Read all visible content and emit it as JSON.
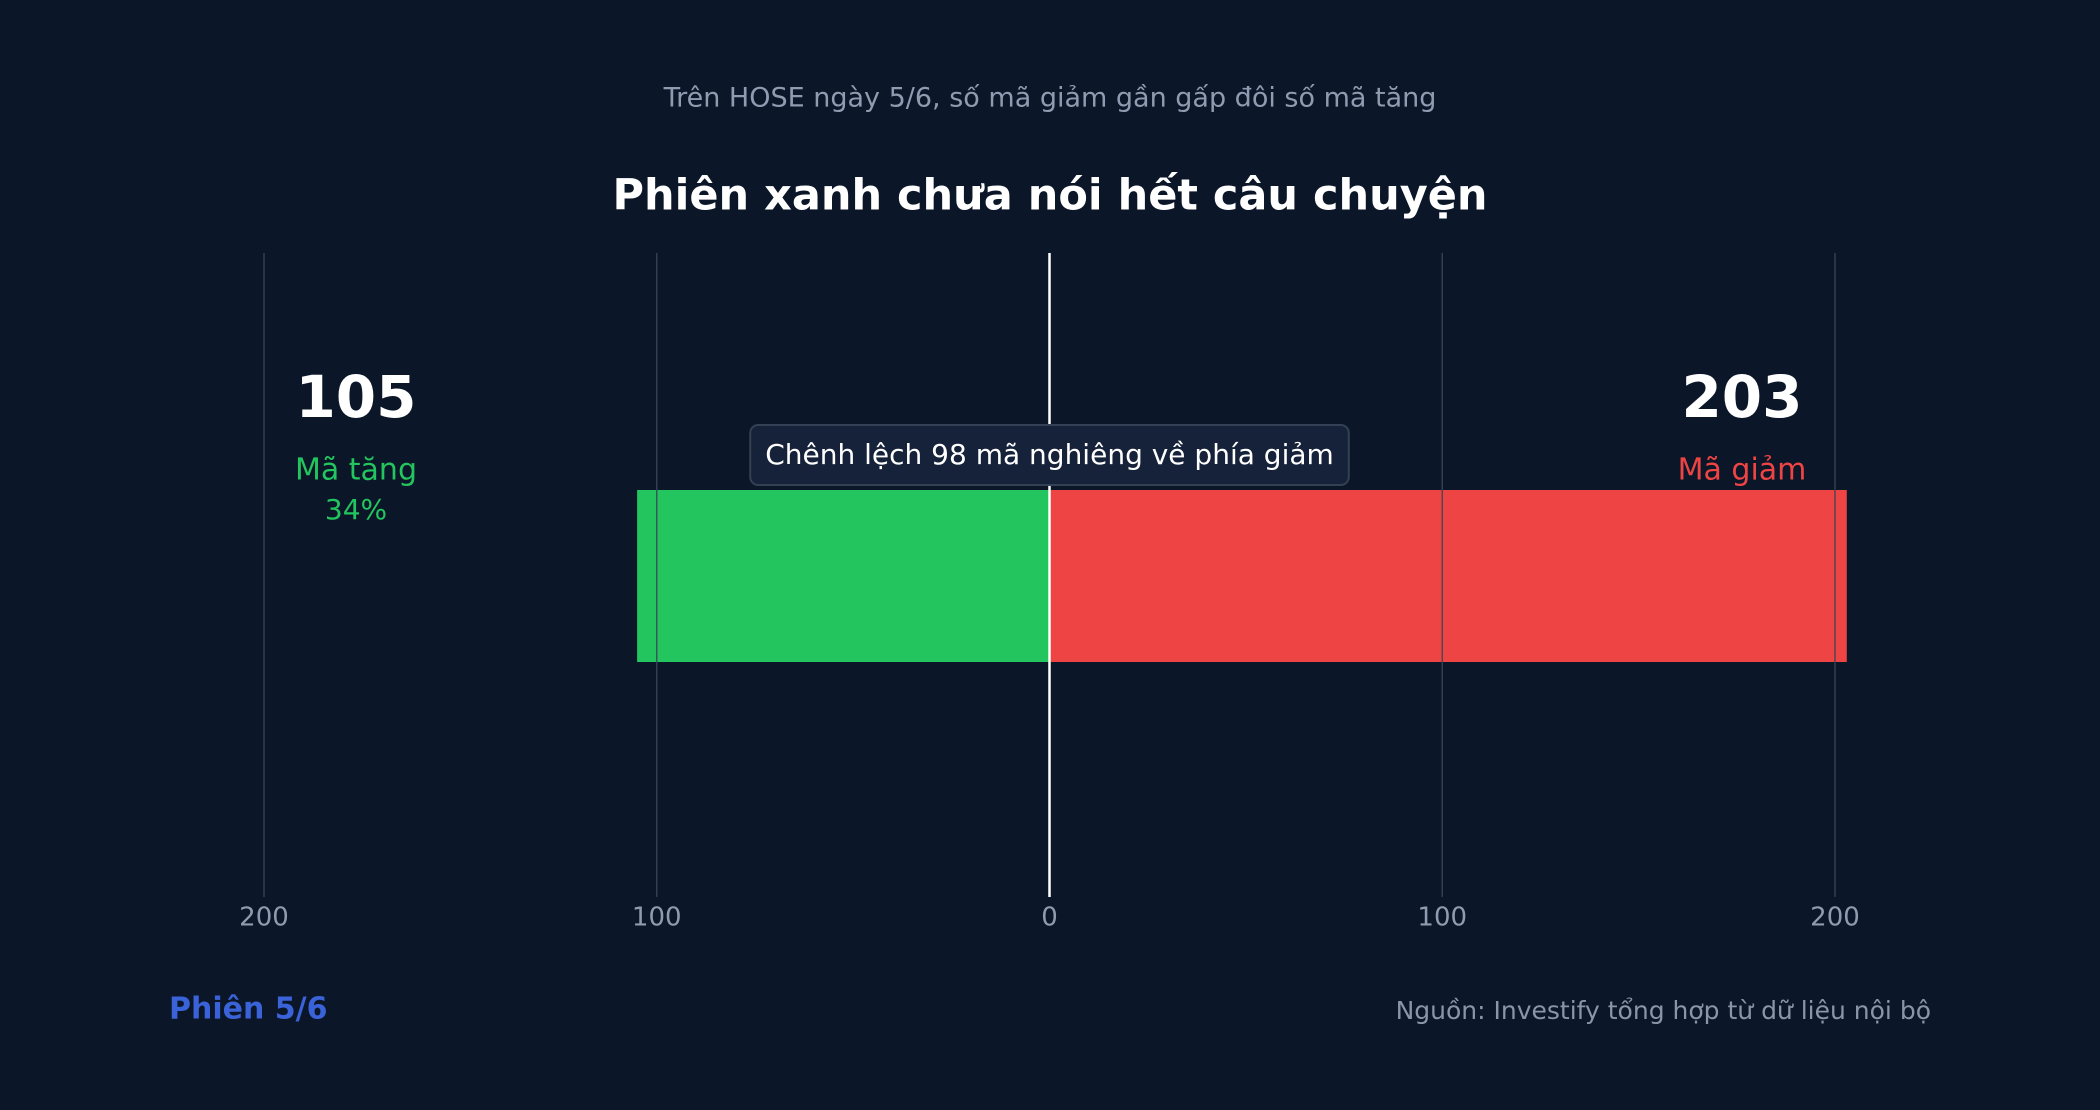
{
  "chart_data": {
    "type": "diverging_bar",
    "subtitle": "Trên HOSE ngày 5/6, số mã giảm gần gấp đôi số mã tăng",
    "title": "Phiên xanh chưa nói hết câu chuyện",
    "annotation": "Chênh lệch 98 mã nghiêng về phía giảm",
    "series": [
      {
        "name": "Mã tăng",
        "color": "#22c55e",
        "direction": "left",
        "values": [
          105
        ],
        "share": 34,
        "share_label": "34%"
      },
      {
        "name": "Mã giảm",
        "color": "#ef4444",
        "direction": "right",
        "values": [
          203
        ]
      }
    ],
    "xlim": [
      -200,
      200
    ],
    "xticks": [
      {
        "value": -200,
        "label": "200"
      },
      {
        "value": -100,
        "label": "100"
      },
      0,
      100,
      200
    ],
    "grid": true,
    "session_label": "Phiên 5/6",
    "source": "Nguồn: Investify tổng hợp từ dữ liệu nội bộ"
  }
}
